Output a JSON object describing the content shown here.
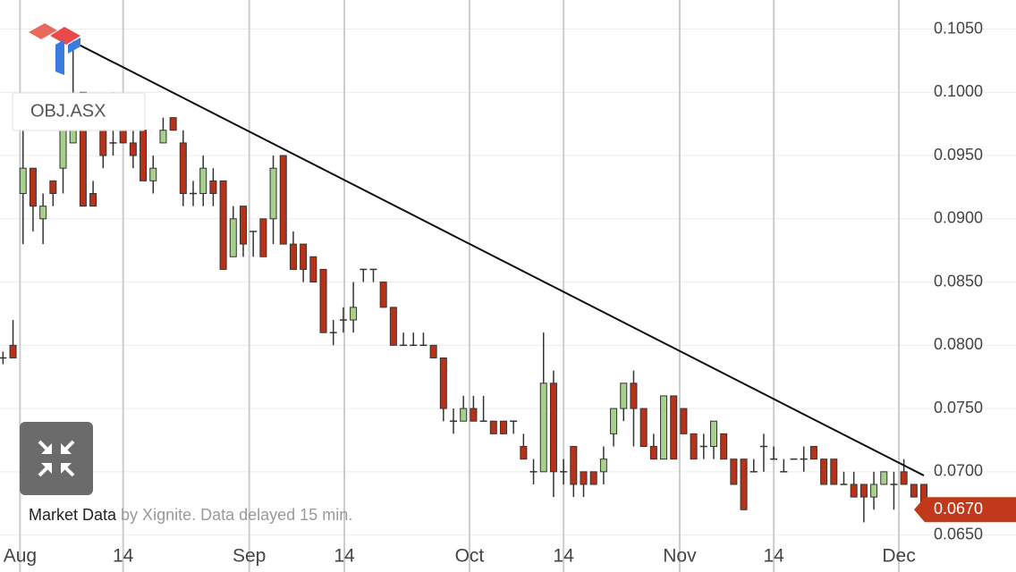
{
  "chart_data": {
    "type": "candlestick",
    "symbol": "OBJ.ASX",
    "footer": {
      "source": "Market Data",
      "note": "by Xignite. Data delayed 15 min."
    },
    "categories": [
      null,
      null,
      null,
      null,
      null,
      null,
      null,
      null,
      null,
      null,
      null,
      null,
      null,
      null,
      null,
      null,
      null,
      null,
      null,
      null,
      null,
      null,
      null,
      null,
      null,
      null,
      null,
      null,
      null,
      null,
      null,
      null,
      null,
      null,
      null,
      null,
      null,
      null,
      null,
      null,
      null,
      null,
      null,
      null,
      null,
      null,
      null,
      null,
      null,
      null,
      null,
      null,
      null,
      null,
      null,
      null,
      null,
      null,
      null,
      null,
      null,
      null,
      null,
      null,
      null,
      null,
      null,
      null,
      null,
      null,
      null,
      null,
      null,
      null,
      null,
      null,
      null,
      null,
      null,
      null,
      null,
      null,
      null,
      null,
      null,
      null,
      null,
      null,
      null,
      null,
      null,
      null,
      null
    ],
    "open": [
      0.079,
      0.08,
      0.092,
      0.094,
      0.09,
      0.093,
      0.094,
      0.096,
      0.1,
      0.092,
      0.097,
      0.096,
      0.099,
      0.096,
      0.097,
      0.093,
      0.096,
      0.098,
      0.096,
      0.092,
      0.092,
      0.093,
      0.093,
      0.087,
      0.091,
      0.089,
      0.09,
      0.09,
      0.095,
      0.088,
      0.088,
      0.087,
      0.086,
      0.081,
      0.082,
      0.082,
      0.086,
      0.086,
      0.085,
      0.083,
      0.08,
      0.08,
      0.08,
      0.08,
      0.079,
      0.074,
      0.074,
      0.075,
      0.074,
      0.074,
      0.074,
      0.074,
      0.072,
      0.07,
      0.07,
      0.077,
      0.07,
      0.072,
      0.07,
      0.07,
      0.07,
      0.073,
      0.075,
      0.077,
      0.075,
      0.072,
      0.071,
      0.076,
      0.075,
      0.073,
      0.072,
      0.072,
      0.073,
      0.071,
      0.071,
      0.07,
      0.072,
      0.071,
      0.07,
      0.071,
      0.071,
      0.072,
      0.071,
      0.071,
      0.069,
      0.069,
      0.069,
      0.068,
      0.069,
      0.069,
      0.07,
      0.069,
      0.069
    ],
    "high": [
      0.0795,
      0.082,
      0.097,
      0.094,
      0.092,
      0.093,
      0.097,
      0.104,
      0.1,
      0.093,
      0.098,
      0.1,
      0.099,
      0.097,
      0.098,
      0.095,
      0.098,
      0.098,
      0.097,
      0.093,
      0.095,
      0.094,
      0.093,
      0.091,
      0.091,
      0.089,
      0.09,
      0.095,
      0.095,
      0.089,
      0.088,
      0.087,
      0.086,
      0.082,
      0.083,
      0.085,
      0.086,
      0.086,
      0.085,
      0.083,
      0.081,
      0.081,
      0.081,
      0.08,
      0.079,
      0.075,
      0.076,
      0.076,
      0.076,
      0.074,
      0.074,
      0.074,
      0.073,
      0.071,
      0.081,
      0.078,
      0.071,
      0.072,
      0.07,
      0.07,
      0.072,
      0.075,
      0.077,
      0.078,
      0.075,
      0.073,
      0.076,
      0.076,
      0.075,
      0.073,
      0.073,
      0.074,
      0.073,
      0.071,
      0.071,
      0.071,
      0.073,
      0.072,
      0.071,
      0.071,
      0.072,
      0.072,
      0.071,
      0.071,
      0.07,
      0.07,
      0.069,
      0.07,
      0.07,
      0.07,
      0.071,
      0.069,
      0.069
    ],
    "low": [
      0.0785,
      0.079,
      0.088,
      0.089,
      0.088,
      0.091,
      0.092,
      0.096,
      0.091,
      0.091,
      0.094,
      0.095,
      0.096,
      0.094,
      0.093,
      0.092,
      0.096,
      0.097,
      0.091,
      0.091,
      0.091,
      0.091,
      0.086,
      0.087,
      0.087,
      0.087,
      0.087,
      0.088,
      0.088,
      0.086,
      0.085,
      0.085,
      0.081,
      0.08,
      0.081,
      0.081,
      0.085,
      0.085,
      0.083,
      0.08,
      0.08,
      0.08,
      0.08,
      0.079,
      0.074,
      0.073,
      0.074,
      0.074,
      0.074,
      0.073,
      0.073,
      0.073,
      0.071,
      0.069,
      0.07,
      0.068,
      0.069,
      0.068,
      0.068,
      0.069,
      0.069,
      0.072,
      0.074,
      0.072,
      0.072,
      0.071,
      0.071,
      0.071,
      0.073,
      0.071,
      0.071,
      0.071,
      0.071,
      0.069,
      0.067,
      0.07,
      0.07,
      0.071,
      0.07,
      0.071,
      0.07,
      0.071,
      0.069,
      0.069,
      0.069,
      0.068,
      0.066,
      0.067,
      0.069,
      0.067,
      0.069,
      0.068,
      0.067
    ],
    "close": [
      0.079,
      0.079,
      0.094,
      0.091,
      0.091,
      0.092,
      0.097,
      0.099,
      0.091,
      0.091,
      0.095,
      0.096,
      0.096,
      0.095,
      0.093,
      0.094,
      0.097,
      0.097,
      0.092,
      0.092,
      0.094,
      0.092,
      0.086,
      0.09,
      0.088,
      0.089,
      0.087,
      0.094,
      0.088,
      0.086,
      0.086,
      0.085,
      0.081,
      0.081,
      0.082,
      0.083,
      0.086,
      0.086,
      0.083,
      0.08,
      0.08,
      0.08,
      0.08,
      0.079,
      0.075,
      0.074,
      0.075,
      0.074,
      0.074,
      0.073,
      0.073,
      0.074,
      0.071,
      0.07,
      0.077,
      0.07,
      0.07,
      0.069,
      0.069,
      0.069,
      0.071,
      0.075,
      0.077,
      0.075,
      0.072,
      0.071,
      0.076,
      0.071,
      0.073,
      0.071,
      0.072,
      0.074,
      0.071,
      0.069,
      0.067,
      0.07,
      0.072,
      0.071,
      0.07,
      0.071,
      0.071,
      0.071,
      0.069,
      0.069,
      0.069,
      0.068,
      0.068,
      0.069,
      0.07,
      0.069,
      0.069,
      0.068,
      0.067
    ],
    "up_color": "#a8d08d",
    "down_color": "#b8321a",
    "edge_color": "#333333",
    "trendline": {
      "x": [
        7,
        92
      ],
      "values": [
        0.104,
        0.0697
      ],
      "color": "#111111"
    },
    "last_price": {
      "value": 0.067,
      "label": "0.0670",
      "color": "#c0391b"
    },
    "ylim": [
      0.0649,
      0.1073
    ],
    "yticks": [
      {
        "value": 0.065,
        "label": "0.0650"
      },
      {
        "value": 0.07,
        "label": "0.0700"
      },
      {
        "value": 0.075,
        "label": "0.0750"
      },
      {
        "value": 0.08,
        "label": "0.0800"
      },
      {
        "value": 0.085,
        "label": "0.0850"
      },
      {
        "value": 0.09,
        "label": "0.0900"
      },
      {
        "value": 0.095,
        "label": "0.0950"
      },
      {
        "value": 0.1,
        "label": "0.1000"
      },
      {
        "value": 0.105,
        "label": "0.1050"
      }
    ],
    "xlim": [
      -0.3,
      101.2
    ],
    "xticks": [
      {
        "value": 1.7,
        "label": "Aug"
      },
      {
        "value": 12,
        "label": "14"
      },
      {
        "value": 24.6,
        "label": "Sep"
      },
      {
        "value": 34.1,
        "label": "14"
      },
      {
        "value": 46.6,
        "label": "Oct"
      },
      {
        "value": 56,
        "label": "14"
      },
      {
        "value": 67.6,
        "label": "Nov"
      },
      {
        "value": 77,
        "label": "14"
      },
      {
        "value": 89.5,
        "label": "Dec"
      }
    ],
    "grid": true
  }
}
